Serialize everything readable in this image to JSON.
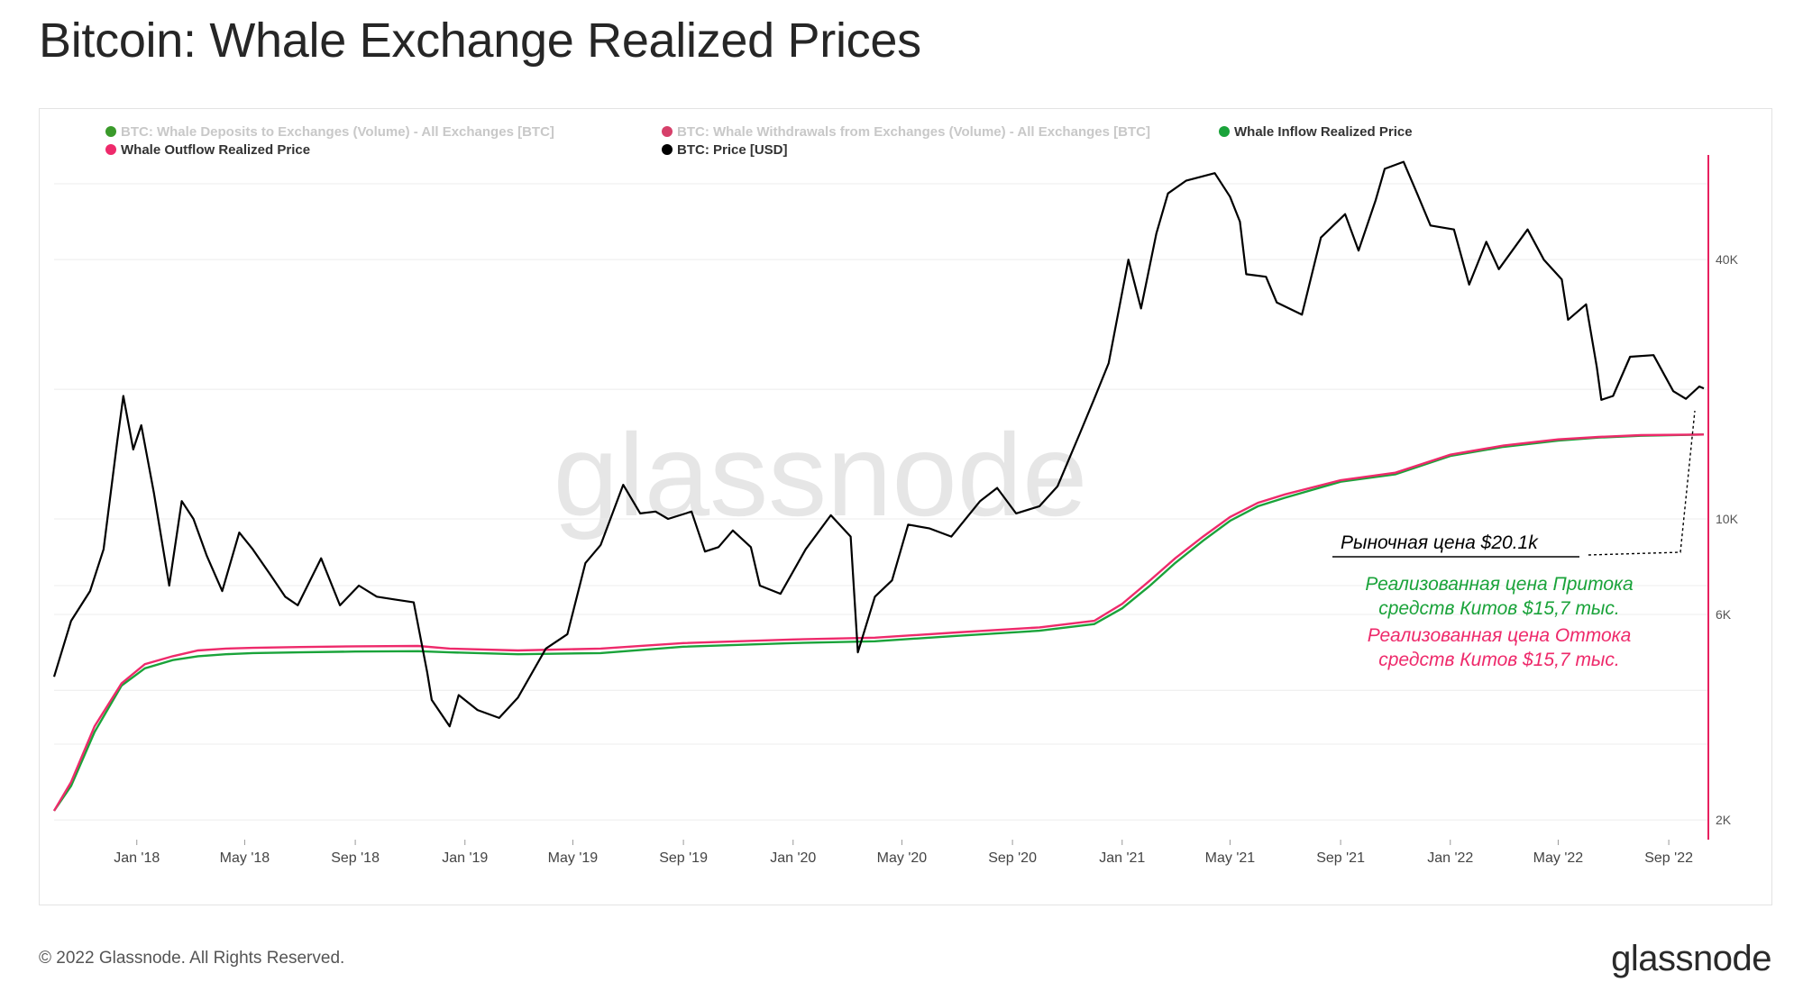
{
  "title": "Bitcoin: Whale Exchange Realized Prices",
  "footer": "© 2022 Glassnode. All Rights Reserved.",
  "brand": "glassnode",
  "watermark": "glassnode",
  "colors": {
    "price": "#000000",
    "inflow": "#1aa33a",
    "outflow": "#ee2a6b",
    "deposits_legend": "#3a9a2a",
    "withdrawals_legend": "#d6406a",
    "grid": "#ececec",
    "axis": "#e8205f"
  },
  "chart_data": {
    "type": "line",
    "y_scale": "log",
    "ylim": [
      1800,
      70000
    ],
    "xlim": [
      "2017-10-01",
      "2022-10-10"
    ],
    "y_ticks": [
      {
        "value": 40000,
        "label": "40K"
      },
      {
        "value": 10000,
        "label": "10K"
      },
      {
        "value": 6000,
        "label": "6K"
      },
      {
        "value": 2000,
        "label": "2K"
      }
    ],
    "x_ticks": [
      {
        "value": "2018-01-01",
        "label": "Jan '18"
      },
      {
        "value": "2018-05-01",
        "label": "May '18"
      },
      {
        "value": "2018-09-01",
        "label": "Sep '18"
      },
      {
        "value": "2019-01-01",
        "label": "Jan '19"
      },
      {
        "value": "2019-05-01",
        "label": "May '19"
      },
      {
        "value": "2019-09-01",
        "label": "Sep '19"
      },
      {
        "value": "2020-01-01",
        "label": "Jan '20"
      },
      {
        "value": "2020-05-01",
        "label": "May '20"
      },
      {
        "value": "2020-09-01",
        "label": "Sep '20"
      },
      {
        "value": "2021-01-01",
        "label": "Jan '21"
      },
      {
        "value": "2021-05-01",
        "label": "May '21"
      },
      {
        "value": "2021-09-01",
        "label": "Sep '21"
      },
      {
        "value": "2022-01-01",
        "label": "Jan '22"
      },
      {
        "value": "2022-05-01",
        "label": "May '22"
      },
      {
        "value": "2022-09-01",
        "label": "Sep '22"
      }
    ],
    "legend": [
      {
        "label": "BTC: Whale Deposits to Exchanges (Volume) - All Exchanges [BTC]",
        "color": "#3a9a2a",
        "active": false
      },
      {
        "label": "BTC: Whale Withdrawals from Exchanges (Volume) - All Exchanges [BTC]",
        "color": "#d6406a",
        "active": false
      },
      {
        "label": "Whale Inflow Realized Price",
        "color": "#1aa33a",
        "active": true
      },
      {
        "label": "Whale Outflow Realized Price",
        "color": "#ee2a6b",
        "active": true
      },
      {
        "label": "BTC: Price [USD]",
        "color": "#000000",
        "active": true
      }
    ],
    "series": [
      {
        "name": "BTC: Price [USD]",
        "x": [
          "2017-10-01",
          "2017-10-20",
          "2017-11-10",
          "2017-11-25",
          "2017-12-10",
          "2017-12-17",
          "2017-12-28",
          "2018-01-06",
          "2018-01-20",
          "2018-02-06",
          "2018-02-20",
          "2018-03-05",
          "2018-03-20",
          "2018-04-06",
          "2018-04-25",
          "2018-05-10",
          "2018-05-30",
          "2018-06-15",
          "2018-06-29",
          "2018-07-25",
          "2018-08-15",
          "2018-09-05",
          "2018-09-25",
          "2018-10-15",
          "2018-11-05",
          "2018-11-20",
          "2018-11-25",
          "2018-12-15",
          "2018-12-25",
          "2019-01-15",
          "2019-02-08",
          "2019-03-01",
          "2019-04-01",
          "2019-04-25",
          "2019-05-15",
          "2019-06-01",
          "2019-06-26",
          "2019-07-15",
          "2019-08-01",
          "2019-08-15",
          "2019-09-10",
          "2019-09-25",
          "2019-10-10",
          "2019-10-26",
          "2019-11-15",
          "2019-11-25",
          "2019-12-18",
          "2020-01-15",
          "2020-02-12",
          "2020-03-05",
          "2020-03-13",
          "2020-04-01",
          "2020-04-20",
          "2020-05-08",
          "2020-06-01",
          "2020-06-25",
          "2020-07-27",
          "2020-08-15",
          "2020-09-05",
          "2020-10-01",
          "2020-10-21",
          "2020-11-15",
          "2020-12-01",
          "2020-12-17",
          "2021-01-08",
          "2021-01-22",
          "2021-02-08",
          "2021-02-21",
          "2021-03-13",
          "2021-04-14",
          "2021-05-01",
          "2021-05-12",
          "2021-05-19",
          "2021-06-10",
          "2021-06-22",
          "2021-07-20",
          "2021-08-10",
          "2021-09-06",
          "2021-09-21",
          "2021-10-10",
          "2021-10-20",
          "2021-11-10",
          "2021-11-25",
          "2021-12-10",
          "2022-01-05",
          "2022-01-22",
          "2022-02-10",
          "2022-02-24",
          "2022-03-28",
          "2022-04-15",
          "2022-05-05",
          "2022-05-12",
          "2022-06-01",
          "2022-06-13",
          "2022-06-18",
          "2022-07-01",
          "2022-07-20",
          "2022-08-15",
          "2022-09-06",
          "2022-09-20",
          "2022-10-05",
          "2022-10-10"
        ],
        "y": [
          4300,
          5800,
          6800,
          8500,
          15000,
          19300,
          14500,
          16500,
          11500,
          7000,
          11000,
          10000,
          8200,
          6800,
          9300,
          8500,
          7400,
          6600,
          6300,
          8100,
          6300,
          7000,
          6600,
          6500,
          6400,
          4400,
          3800,
          3300,
          3900,
          3600,
          3450,
          3850,
          5000,
          5400,
          7900,
          8700,
          12000,
          10300,
          10400,
          10000,
          10400,
          8400,
          8600,
          9400,
          8600,
          7000,
          6700,
          8500,
          10200,
          9100,
          4900,
          6600,
          7200,
          9700,
          9500,
          9100,
          11000,
          11800,
          10300,
          10700,
          11900,
          15800,
          19000,
          23000,
          40000,
          30800,
          46000,
          57000,
          61000,
          63500,
          56000,
          49000,
          37000,
          36500,
          31800,
          29800,
          45000,
          51000,
          42000,
          55000,
          65000,
          67500,
          57000,
          48000,
          47000,
          35000,
          44000,
          38000,
          47000,
          40000,
          36000,
          29000,
          31500,
          22500,
          18900,
          19300,
          23800,
          24000,
          19800,
          19000,
          20300,
          20100
        ]
      },
      {
        "name": "Whale Inflow Realized Price",
        "x": [
          "2017-10-01",
          "2017-10-20",
          "2017-11-15",
          "2017-12-15",
          "2018-01-10",
          "2018-02-10",
          "2018-03-10",
          "2018-04-10",
          "2018-05-10",
          "2018-07-01",
          "2018-09-01",
          "2018-11-10",
          "2018-12-15",
          "2019-03-01",
          "2019-06-01",
          "2019-09-01",
          "2020-01-01",
          "2020-04-01",
          "2020-07-01",
          "2020-10-01",
          "2020-12-01",
          "2021-01-01",
          "2021-02-01",
          "2021-03-01",
          "2021-04-01",
          "2021-05-01",
          "2021-06-01",
          "2021-07-01",
          "2021-09-01",
          "2021-11-01",
          "2022-01-01",
          "2022-03-01",
          "2022-05-01",
          "2022-06-15",
          "2022-08-01",
          "2022-10-10"
        ],
        "y": [
          2100,
          2400,
          3200,
          4100,
          4500,
          4700,
          4800,
          4850,
          4880,
          4900,
          4920,
          4930,
          4900,
          4850,
          4880,
          5050,
          5150,
          5200,
          5350,
          5500,
          5700,
          6200,
          7000,
          7900,
          8900,
          9900,
          10700,
          11200,
          12200,
          12700,
          14000,
          14700,
          15200,
          15450,
          15600,
          15700
        ]
      },
      {
        "name": "Whale Outflow Realized Price",
        "x": [
          "2017-10-01",
          "2017-10-20",
          "2017-11-15",
          "2017-12-15",
          "2018-01-10",
          "2018-02-10",
          "2018-03-10",
          "2018-04-10",
          "2018-05-10",
          "2018-07-01",
          "2018-09-01",
          "2018-11-10",
          "2018-12-15",
          "2019-03-01",
          "2019-06-01",
          "2019-09-01",
          "2020-01-01",
          "2020-04-01",
          "2020-07-01",
          "2020-10-01",
          "2020-12-01",
          "2021-01-01",
          "2021-02-01",
          "2021-03-01",
          "2021-04-01",
          "2021-05-01",
          "2021-06-01",
          "2021-07-01",
          "2021-09-01",
          "2021-11-01",
          "2022-01-01",
          "2022-03-01",
          "2022-05-01",
          "2022-06-15",
          "2022-08-01",
          "2022-10-10"
        ],
        "y": [
          2100,
          2450,
          3300,
          4150,
          4600,
          4800,
          4950,
          5000,
          5020,
          5040,
          5060,
          5070,
          5000,
          4950,
          5000,
          5150,
          5250,
          5300,
          5450,
          5600,
          5800,
          6350,
          7200,
          8100,
          9100,
          10100,
          10900,
          11400,
          12300,
          12800,
          14100,
          14800,
          15300,
          15500,
          15650,
          15700
        ]
      }
    ],
    "annotations": [
      {
        "text": "Рыночная цена $20.1k",
        "color": "#000000",
        "x": "2022-10-10",
        "value": 20100
      },
      {
        "text": "Реализованная цена Притока",
        "color": "#1aa33a"
      },
      {
        "text": "средств Китов  $15,7 тыс.",
        "color": "#1aa33a"
      },
      {
        "text": "Реализованная цена Оттока",
        "color": "#ee2a6b"
      },
      {
        "text": "средств Китов $15,7 тыс.",
        "color": "#ee2a6b"
      }
    ]
  }
}
